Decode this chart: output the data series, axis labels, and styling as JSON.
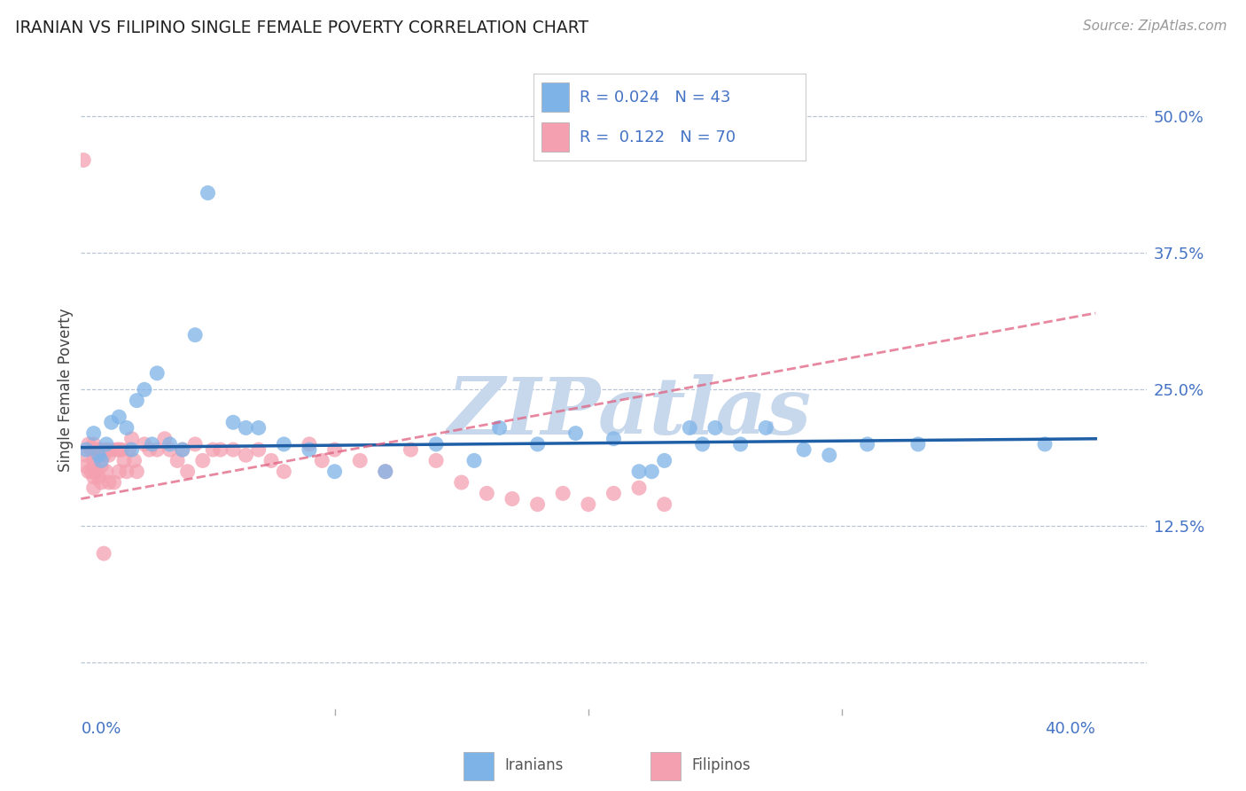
{
  "title": "IRANIAN VS FILIPINO SINGLE FEMALE POVERTY CORRELATION CHART",
  "source": "Source: ZipAtlas.com",
  "ylabel": "Single Female Poverty",
  "xlim": [
    0.0,
    0.42
  ],
  "ylim": [
    -0.045,
    0.545
  ],
  "yticks": [
    0.0,
    0.125,
    0.25,
    0.375,
    0.5
  ],
  "ytick_labels": [
    "",
    "12.5%",
    "25.0%",
    "37.5%",
    "50.0%"
  ],
  "iranian_R": 0.024,
  "iranian_N": 43,
  "filipino_R": 0.122,
  "filipino_N": 70,
  "iranian_color": "#7EB3E8",
  "filipino_color": "#F4A0B0",
  "iranian_line_color": "#1F5FA6",
  "filipino_line_color": "#E06080",
  "watermark_color": "#C8D8EC",
  "blue_text": "#4472C4",
  "iranians_x": [
    0.002,
    0.005,
    0.007,
    0.008,
    0.01,
    0.012,
    0.015,
    0.018,
    0.02,
    0.022,
    0.025,
    0.028,
    0.03,
    0.035,
    0.04,
    0.045,
    0.05,
    0.06,
    0.065,
    0.07,
    0.08,
    0.09,
    0.1,
    0.12,
    0.14,
    0.155,
    0.165,
    0.18,
    0.195,
    0.21,
    0.22,
    0.225,
    0.23,
    0.24,
    0.245,
    0.25,
    0.26,
    0.27,
    0.285,
    0.295,
    0.31,
    0.33,
    0.38
  ],
  "iranians_y": [
    0.195,
    0.21,
    0.19,
    0.185,
    0.2,
    0.22,
    0.225,
    0.215,
    0.195,
    0.24,
    0.25,
    0.2,
    0.265,
    0.2,
    0.195,
    0.3,
    0.43,
    0.22,
    0.215,
    0.215,
    0.2,
    0.195,
    0.175,
    0.175,
    0.2,
    0.185,
    0.215,
    0.2,
    0.21,
    0.205,
    0.175,
    0.175,
    0.185,
    0.215,
    0.2,
    0.215,
    0.2,
    0.215,
    0.195,
    0.19,
    0.2,
    0.2,
    0.2
  ],
  "filipinos_x": [
    0.001,
    0.002,
    0.002,
    0.003,
    0.003,
    0.004,
    0.004,
    0.005,
    0.005,
    0.005,
    0.005,
    0.005,
    0.006,
    0.006,
    0.007,
    0.007,
    0.008,
    0.008,
    0.008,
    0.009,
    0.009,
    0.01,
    0.01,
    0.011,
    0.011,
    0.012,
    0.013,
    0.014,
    0.015,
    0.015,
    0.016,
    0.017,
    0.018,
    0.019,
    0.02,
    0.021,
    0.022,
    0.025,
    0.027,
    0.03,
    0.033,
    0.035,
    0.038,
    0.04,
    0.042,
    0.045,
    0.048,
    0.052,
    0.055,
    0.06,
    0.065,
    0.07,
    0.075,
    0.08,
    0.09,
    0.095,
    0.1,
    0.11,
    0.12,
    0.13,
    0.14,
    0.15,
    0.16,
    0.17,
    0.18,
    0.19,
    0.2,
    0.21,
    0.22,
    0.23
  ],
  "filipinos_y": [
    0.46,
    0.19,
    0.18,
    0.2,
    0.175,
    0.195,
    0.175,
    0.2,
    0.185,
    0.18,
    0.17,
    0.16,
    0.195,
    0.175,
    0.19,
    0.17,
    0.195,
    0.18,
    0.165,
    0.19,
    0.1,
    0.195,
    0.175,
    0.19,
    0.165,
    0.195,
    0.165,
    0.195,
    0.195,
    0.175,
    0.195,
    0.185,
    0.175,
    0.195,
    0.205,
    0.185,
    0.175,
    0.2,
    0.195,
    0.195,
    0.205,
    0.195,
    0.185,
    0.195,
    0.175,
    0.2,
    0.185,
    0.195,
    0.195,
    0.195,
    0.19,
    0.195,
    0.185,
    0.175,
    0.2,
    0.185,
    0.195,
    0.185,
    0.175,
    0.195,
    0.185,
    0.165,
    0.155,
    0.15,
    0.145,
    0.155,
    0.145,
    0.155,
    0.16,
    0.145
  ],
  "iran_trend_x": [
    0.0,
    0.4
  ],
  "iran_trend_y": [
    0.197,
    0.205
  ],
  "fil_trend_x": [
    0.0,
    0.4
  ],
  "fil_trend_y": [
    0.15,
    0.32
  ]
}
